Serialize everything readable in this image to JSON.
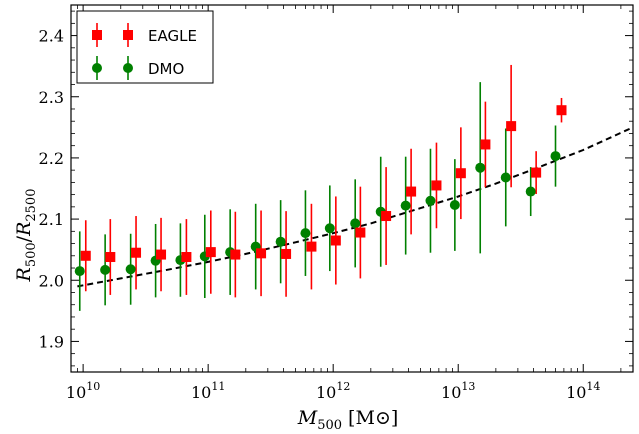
{
  "chart_data": {
    "type": "scatter",
    "xscale": "log",
    "xlim": [
      8000000000.0,
      250000000000000.0
    ],
    "ylim": [
      1.85,
      2.45
    ],
    "xlabel": {
      "main": "M",
      "sub": "500",
      "unit_open": " [M",
      "unit_sym": "⊙",
      "unit_close": "]"
    },
    "ylabel": {
      "a": "R",
      "a_sub": "500",
      "slash": "/",
      "b": "R",
      "b_sub": "2500"
    },
    "x_ticks": [
      {
        "base": "10",
        "exp": "10",
        "value": 10000000000.0
      },
      {
        "base": "10",
        "exp": "11",
        "value": 100000000000.0
      },
      {
        "base": "10",
        "exp": "12",
        "value": 1000000000000.0
      },
      {
        "base": "10",
        "exp": "13",
        "value": 10000000000000.0
      },
      {
        "base": "10",
        "exp": "14",
        "value": 100000000000000.0
      }
    ],
    "y_ticks": [
      "1.9",
      "2.0",
      "2.1",
      "2.2",
      "2.3",
      "2.4"
    ],
    "legend": {
      "position": "top-left"
    },
    "series": [
      {
        "name": "EAGLE",
        "marker": "square",
        "color": "#ff0000",
        "x": [
          10500000000.0,
          16500000000.0,
          26500000000.0,
          42000000000.0,
          67000000000.0,
          105000000000.0,
          165000000000.0,
          265000000000.0,
          420000000000.0,
          670000000000.0,
          1050000000000.0,
          1650000000000.0,
          2650000000000.0,
          4200000000000.0,
          6700000000000.0,
          10500000000000.0,
          16500000000000.0,
          26500000000000.0,
          42000000000000.0,
          67000000000000.0
        ],
        "y": [
          2.04,
          2.038,
          2.045,
          2.042,
          2.038,
          2.046,
          2.042,
          2.044,
          2.043,
          2.055,
          2.065,
          2.078,
          2.105,
          2.145,
          2.155,
          2.175,
          2.222,
          2.252,
          2.176,
          2.278
        ],
        "yerr": [
          0.058,
          0.062,
          0.06,
          0.06,
          0.062,
          0.068,
          0.07,
          0.07,
          0.07,
          0.07,
          0.072,
          0.075,
          0.08,
          0.07,
          0.07,
          0.075,
          0.07,
          0.1,
          0.035,
          0.02
        ]
      },
      {
        "name": "DMO",
        "marker": "circle",
        "color": "#008000",
        "x": [
          9400000000.0,
          15000000000.0,
          24000000000.0,
          38000000000.0,
          60000000000.0,
          94000000000.0,
          150000000000.0,
          240000000000.0,
          380000000000.0,
          600000000000.0,
          940000000000.0,
          1500000000000.0,
          2400000000000.0,
          3800000000000.0,
          6000000000000.0,
          9400000000000.0,
          15000000000000.0,
          24000000000000.0,
          38000000000000.0,
          60000000000000.0
        ],
        "y": [
          2.015,
          2.017,
          2.018,
          2.032,
          2.033,
          2.039,
          2.046,
          2.055,
          2.063,
          2.077,
          2.085,
          2.093,
          2.112,
          2.122,
          2.13,
          2.123,
          2.184,
          2.168,
          2.145,
          2.203
        ],
        "yerr": [
          0.065,
          0.058,
          0.058,
          0.06,
          0.06,
          0.068,
          0.07,
          0.07,
          0.068,
          0.07,
          0.07,
          0.072,
          0.09,
          0.08,
          0.085,
          0.075,
          0.14,
          0.08,
          0.04,
          0.05
        ]
      },
      {
        "marker": "none",
        "style": "dashed",
        "color": "#000000",
        "x": [
          9000000000.0,
          20000000000.0,
          50000000000.0,
          100000000000.0,
          200000000000.0,
          500000000000.0,
          1000000000000.0,
          2000000000000.0,
          5000000000000.0,
          10000000000000.0,
          20000000000000.0,
          50000000000000.0,
          100000000000000.0,
          250000000000000.0
        ],
        "y": [
          1.99,
          2.003,
          2.018,
          2.03,
          2.043,
          2.062,
          2.077,
          2.093,
          2.118,
          2.137,
          2.158,
          2.189,
          2.213,
          2.25
        ]
      }
    ]
  }
}
